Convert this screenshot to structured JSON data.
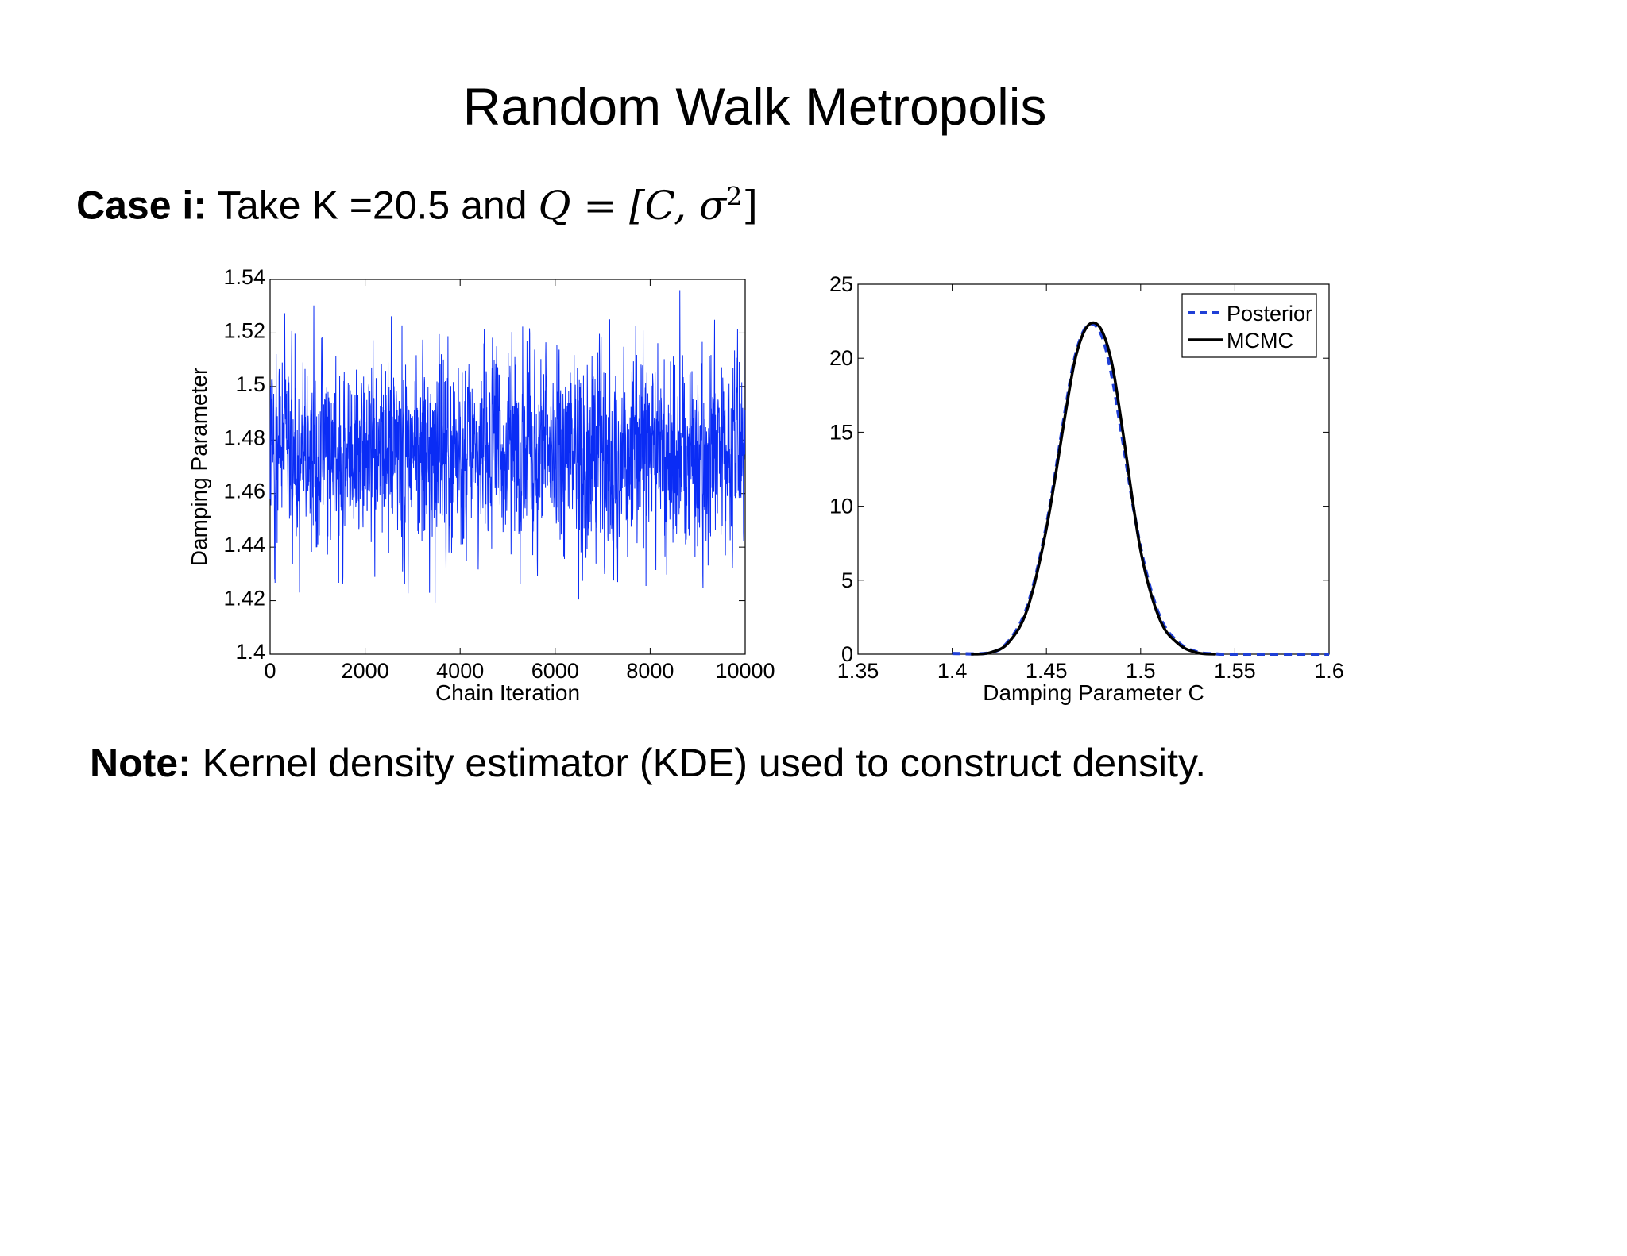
{
  "slide": {
    "title": "Random Walk Metropolis",
    "case_label": "Case i:",
    "case_text": "Take K =20.5 and",
    "case_math_lhs": "Q",
    "case_math_eq": "=",
    "case_math_open": "[C, σ",
    "case_math_exp": "2",
    "case_math_close": "]",
    "note_label": "Note:",
    "note_text": "Kernel density estimator (KDE) used to construct density."
  },
  "colors": {
    "chain": "#0a2cf5",
    "posterior": "#1f3fd6",
    "mcmc": "#000000",
    "axis": "#000000"
  },
  "chart_data": [
    {
      "type": "line",
      "title": "",
      "xlabel": "Chain Iteration",
      "ylabel": "Damping Parameter",
      "xlim": [
        0,
        10000
      ],
      "ylim": [
        1.4,
        1.54
      ],
      "xticks": [
        0,
        2000,
        4000,
        6000,
        8000,
        10000
      ],
      "xtick_labels": [
        "0",
        "2000",
        "4000",
        "6000",
        "8000",
        "10000"
      ],
      "yticks": [
        1.4,
        1.42,
        1.44,
        1.46,
        1.48,
        1.5,
        1.52,
        1.54
      ],
      "ytick_labels": [
        "1.4",
        "1.42",
        "1.44",
        "1.46",
        "1.48",
        "1.5",
        "1.52",
        "1.54"
      ],
      "grid": false,
      "series": [
        {
          "color": "#0a2cf5",
          "n_samples": 10000,
          "mean": 1.476,
          "std": 0.018,
          "min": 1.418,
          "max": 1.54
        }
      ]
    },
    {
      "type": "line",
      "title": "",
      "xlabel": "Damping Parameter C",
      "ylabel": "",
      "xlim": [
        1.35,
        1.6
      ],
      "ylim": [
        0,
        25
      ],
      "xticks": [
        1.35,
        1.4,
        1.45,
        1.5,
        1.55,
        1.6
      ],
      "xtick_labels": [
        "1.35",
        "1.4",
        "1.45",
        "1.5",
        "1.55",
        "1.6"
      ],
      "yticks": [
        0,
        5,
        10,
        15,
        20,
        25
      ],
      "ytick_labels": [
        "0",
        "5",
        "10",
        "15",
        "20",
        "25"
      ],
      "grid": false,
      "legend": {
        "position": "top-right",
        "entries": [
          "Posterior",
          "MCMC"
        ]
      },
      "series": [
        {
          "name": "Posterior",
          "style": "dashed",
          "color": "#1f3fd6",
          "x": [
            1.4,
            1.42,
            1.43,
            1.44,
            1.45,
            1.46,
            1.465,
            1.47,
            1.475,
            1.48,
            1.485,
            1.49,
            1.5,
            1.51,
            1.52,
            1.53,
            1.54,
            1.55,
            1.6
          ],
          "y": [
            0.05,
            0.1,
            0.9,
            3.3,
            8.7,
            16.5,
            20.0,
            21.9,
            22.3,
            21.3,
            18.6,
            14.8,
            7.2,
            2.6,
            0.8,
            0.15,
            0.02,
            0.0,
            0.0
          ]
        },
        {
          "name": "MCMC",
          "style": "solid",
          "color": "#000000",
          "x": [
            1.41,
            1.42,
            1.43,
            1.44,
            1.45,
            1.46,
            1.465,
            1.47,
            1.475,
            1.48,
            1.485,
            1.49,
            1.5,
            1.51,
            1.52,
            1.53,
            1.54
          ],
          "y": [
            0.0,
            0.1,
            0.8,
            3.1,
            8.5,
            16.2,
            19.8,
            21.8,
            22.4,
            21.7,
            19.5,
            15.5,
            7.0,
            2.4,
            0.7,
            0.1,
            0.0
          ]
        }
      ]
    }
  ]
}
